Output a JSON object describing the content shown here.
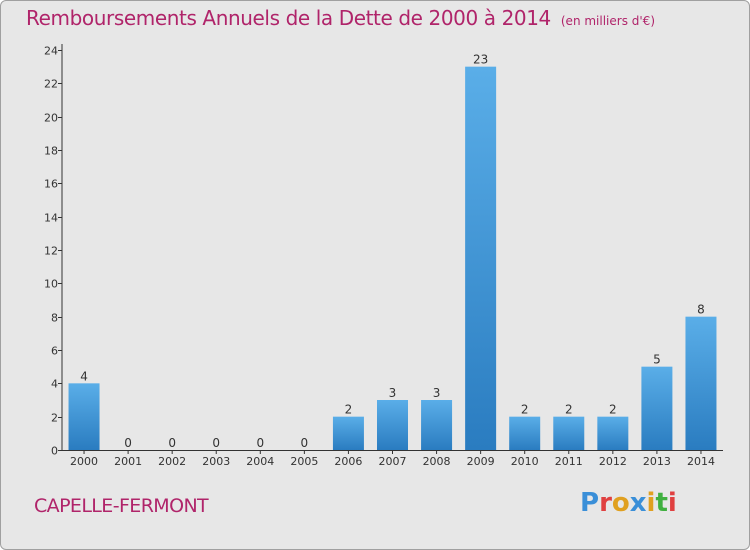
{
  "header": {
    "title": "Remboursements Annuels de la Dette de 2000 à 2014",
    "subtitle": "(en milliers d'€)"
  },
  "footer": {
    "commune": "CAPELLE-FERMONT",
    "logo_text": "Proxiti"
  },
  "colors": {
    "title": "#b0246a",
    "bar_top": "#5aaee8",
    "bar_bottom": "#2a7cc0",
    "background": "#e7e7e7",
    "logo_letters": [
      "#3a8fd8",
      "#e04040",
      "#e0a020",
      "#3a8fd8",
      "#e0a020",
      "#40b040",
      "#e04040"
    ]
  },
  "chart_data": {
    "type": "bar",
    "title": "Remboursements Annuels de la Dette de 2000 à 2014",
    "subtitle": "(en milliers d'€)",
    "categories": [
      "2000",
      "2001",
      "2002",
      "2003",
      "2004",
      "2005",
      "2006",
      "2007",
      "2008",
      "2009",
      "2010",
      "2011",
      "2012",
      "2013",
      "2014"
    ],
    "values": [
      4,
      0,
      0,
      0,
      0,
      0,
      2,
      3,
      3,
      23,
      2,
      2,
      2,
      5,
      8
    ],
    "ylim": [
      0,
      24
    ],
    "yticks": [
      0,
      2,
      4,
      6,
      8,
      10,
      12,
      14,
      16,
      18,
      20,
      22,
      24
    ],
    "grid": false,
    "legend": "none"
  }
}
